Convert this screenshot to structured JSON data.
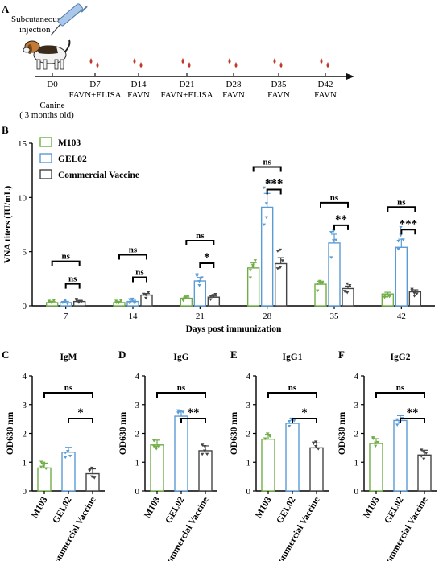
{
  "panels": {
    "a": "A",
    "b": "B",
    "c": "C",
    "d": "D",
    "e": "E",
    "f": "F"
  },
  "timeline": {
    "injection": [
      "Subcutaneous",
      "injection"
    ],
    "animal": [
      "Canine",
      "( 3 months old)"
    ],
    "days": [
      "D0",
      "D7",
      "D14",
      "D21",
      "D28",
      "D35",
      "D42"
    ],
    "assays": [
      "",
      "FAVN+ELISA",
      "FAVN",
      "FAVN+ELISA",
      "FAVN",
      "FAVN",
      "FAVN"
    ]
  },
  "colors": {
    "m103": "#70ad47",
    "gel02": "#5b9bd5",
    "commercial": "#444444",
    "blood": "#c0392b"
  },
  "chart_data": [
    {
      "type": "bar",
      "id": "vna",
      "ylabel": "VNA titers (IU/mL)",
      "xlabel": "Days post immunization",
      "categories": [
        "7",
        "14",
        "21",
        "28",
        "35",
        "42"
      ],
      "ylim": [
        0,
        15
      ],
      "yticks": [
        "0",
        "5",
        "10",
        "15"
      ],
      "legend_position": "top-left",
      "series": [
        {
          "name": "M103",
          "values": [
            0.3,
            0.3,
            0.7,
            3.5,
            2.0,
            1.1
          ]
        },
        {
          "name": "GEL02",
          "values": [
            0.3,
            0.4,
            2.3,
            9.1,
            5.8,
            5.4
          ]
        },
        {
          "name": "Commercial Vaccine",
          "values": [
            0.4,
            1.0,
            0.8,
            3.9,
            1.6,
            1.3
          ]
        }
      ],
      "significance": [
        {
          "group": "7",
          "pairs": [
            [
              "M103",
              "Commercial Vaccine",
              "ns"
            ],
            [
              "GEL02",
              "Commercial Vaccine",
              "ns"
            ]
          ]
        },
        {
          "group": "14",
          "pairs": [
            [
              "M103",
              "Commercial Vaccine",
              "ns"
            ],
            [
              "GEL02",
              "Commercial Vaccine",
              "ns"
            ]
          ]
        },
        {
          "group": "21",
          "pairs": [
            [
              "M103",
              "Commercial Vaccine",
              "ns"
            ],
            [
              "GEL02",
              "Commercial Vaccine",
              "*"
            ]
          ]
        },
        {
          "group": "28",
          "pairs": [
            [
              "M103",
              "Commercial Vaccine",
              "ns"
            ],
            [
              "GEL02",
              "Commercial Vaccine",
              "***"
            ]
          ]
        },
        {
          "group": "35",
          "pairs": [
            [
              "M103",
              "Commercial Vaccine",
              "ns"
            ],
            [
              "GEL02",
              "Commercial Vaccine",
              "**"
            ]
          ]
        },
        {
          "group": "42",
          "pairs": [
            [
              "M103",
              "Commercial Vaccine",
              "ns"
            ],
            [
              "GEL02",
              "Commercial Vaccine",
              "***"
            ]
          ]
        }
      ]
    },
    {
      "type": "bar",
      "id": "igm",
      "title": "IgM",
      "ylabel": "OD630 nm",
      "categories": [
        "M103",
        "GEL02",
        "Commercial Vaccine"
      ],
      "values": [
        0.8,
        1.35,
        0.6
      ],
      "ylim": [
        0,
        4
      ],
      "yticks": [
        "0",
        "1",
        "2",
        "3",
        "4"
      ],
      "sig": [
        "ns",
        "*"
      ]
    },
    {
      "type": "bar",
      "id": "igg",
      "title": "IgG",
      "ylabel": "OD630 nm",
      "categories": [
        "M103",
        "GEL02",
        "Commercial Vaccine"
      ],
      "values": [
        1.6,
        2.6,
        1.4
      ],
      "ylim": [
        0,
        4
      ],
      "yticks": [
        "0",
        "1",
        "2",
        "3",
        "4"
      ],
      "sig": [
        "ns",
        "**"
      ]
    },
    {
      "type": "bar",
      "id": "igg1",
      "title": "IgG1",
      "ylabel": "OD630 nm",
      "categories": [
        "M103",
        "GEL02",
        "Commercial Vaccine"
      ],
      "values": [
        1.8,
        2.35,
        1.5
      ],
      "ylim": [
        0,
        4
      ],
      "yticks": [
        "0",
        "1",
        "2",
        "3",
        "4"
      ],
      "sig": [
        "ns",
        "*"
      ]
    },
    {
      "type": "bar",
      "id": "igg2",
      "title": "IgG2",
      "ylabel": "OD630 nm",
      "categories": [
        "M103",
        "GEL02",
        "Commercial Vaccine"
      ],
      "values": [
        1.65,
        2.45,
        1.25
      ],
      "ylim": [
        0,
        4
      ],
      "yticks": [
        "0",
        "1",
        "2",
        "3",
        "4"
      ],
      "sig": [
        "ns",
        "**"
      ]
    }
  ]
}
